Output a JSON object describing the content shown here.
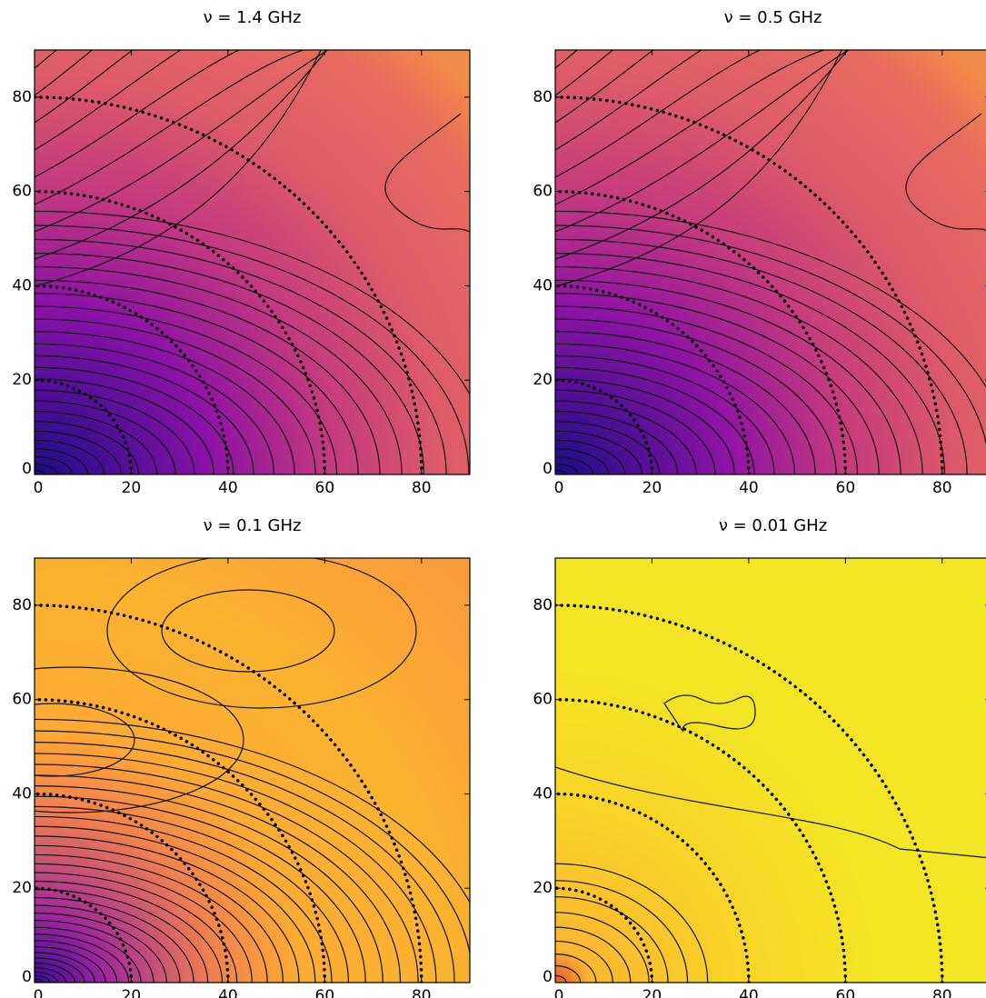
{
  "chart_data": [
    {
      "type": "contour",
      "title": "ν = 1.4 GHz",
      "xlim": [
        0,
        90
      ],
      "ylim": [
        0,
        90
      ],
      "xticks": [
        0,
        20,
        40,
        60,
        80
      ],
      "yticks": [
        0,
        20,
        40,
        60,
        80
      ],
      "circle_radii": [
        20,
        40,
        60,
        80
      ]
    },
    {
      "type": "contour",
      "title": "ν = 0.5 GHz",
      "xlim": [
        0,
        90
      ],
      "ylim": [
        0,
        90
      ],
      "xticks": [
        0,
        20,
        40,
        60,
        80
      ],
      "yticks": [
        0,
        20,
        40,
        60,
        80
      ],
      "circle_radii": [
        20,
        40,
        60,
        80
      ]
    },
    {
      "type": "contour",
      "title": "ν = 0.1 GHz",
      "xlim": [
        0,
        90
      ],
      "ylim": [
        0,
        90
      ],
      "xticks": [
        0,
        20,
        40,
        60,
        80
      ],
      "yticks": [
        0,
        20,
        40,
        60,
        80
      ],
      "circle_radii": [
        20,
        40,
        60,
        80
      ]
    },
    {
      "type": "contour",
      "title": "ν = 0.01 GHz",
      "xlim": [
        0,
        90
      ],
      "ylim": [
        0,
        90
      ],
      "xticks": [
        0,
        20,
        40,
        60,
        80
      ],
      "yticks": [
        0,
        20,
        40,
        60,
        80
      ],
      "circle_radii": [
        20,
        40,
        60,
        80
      ]
    }
  ]
}
